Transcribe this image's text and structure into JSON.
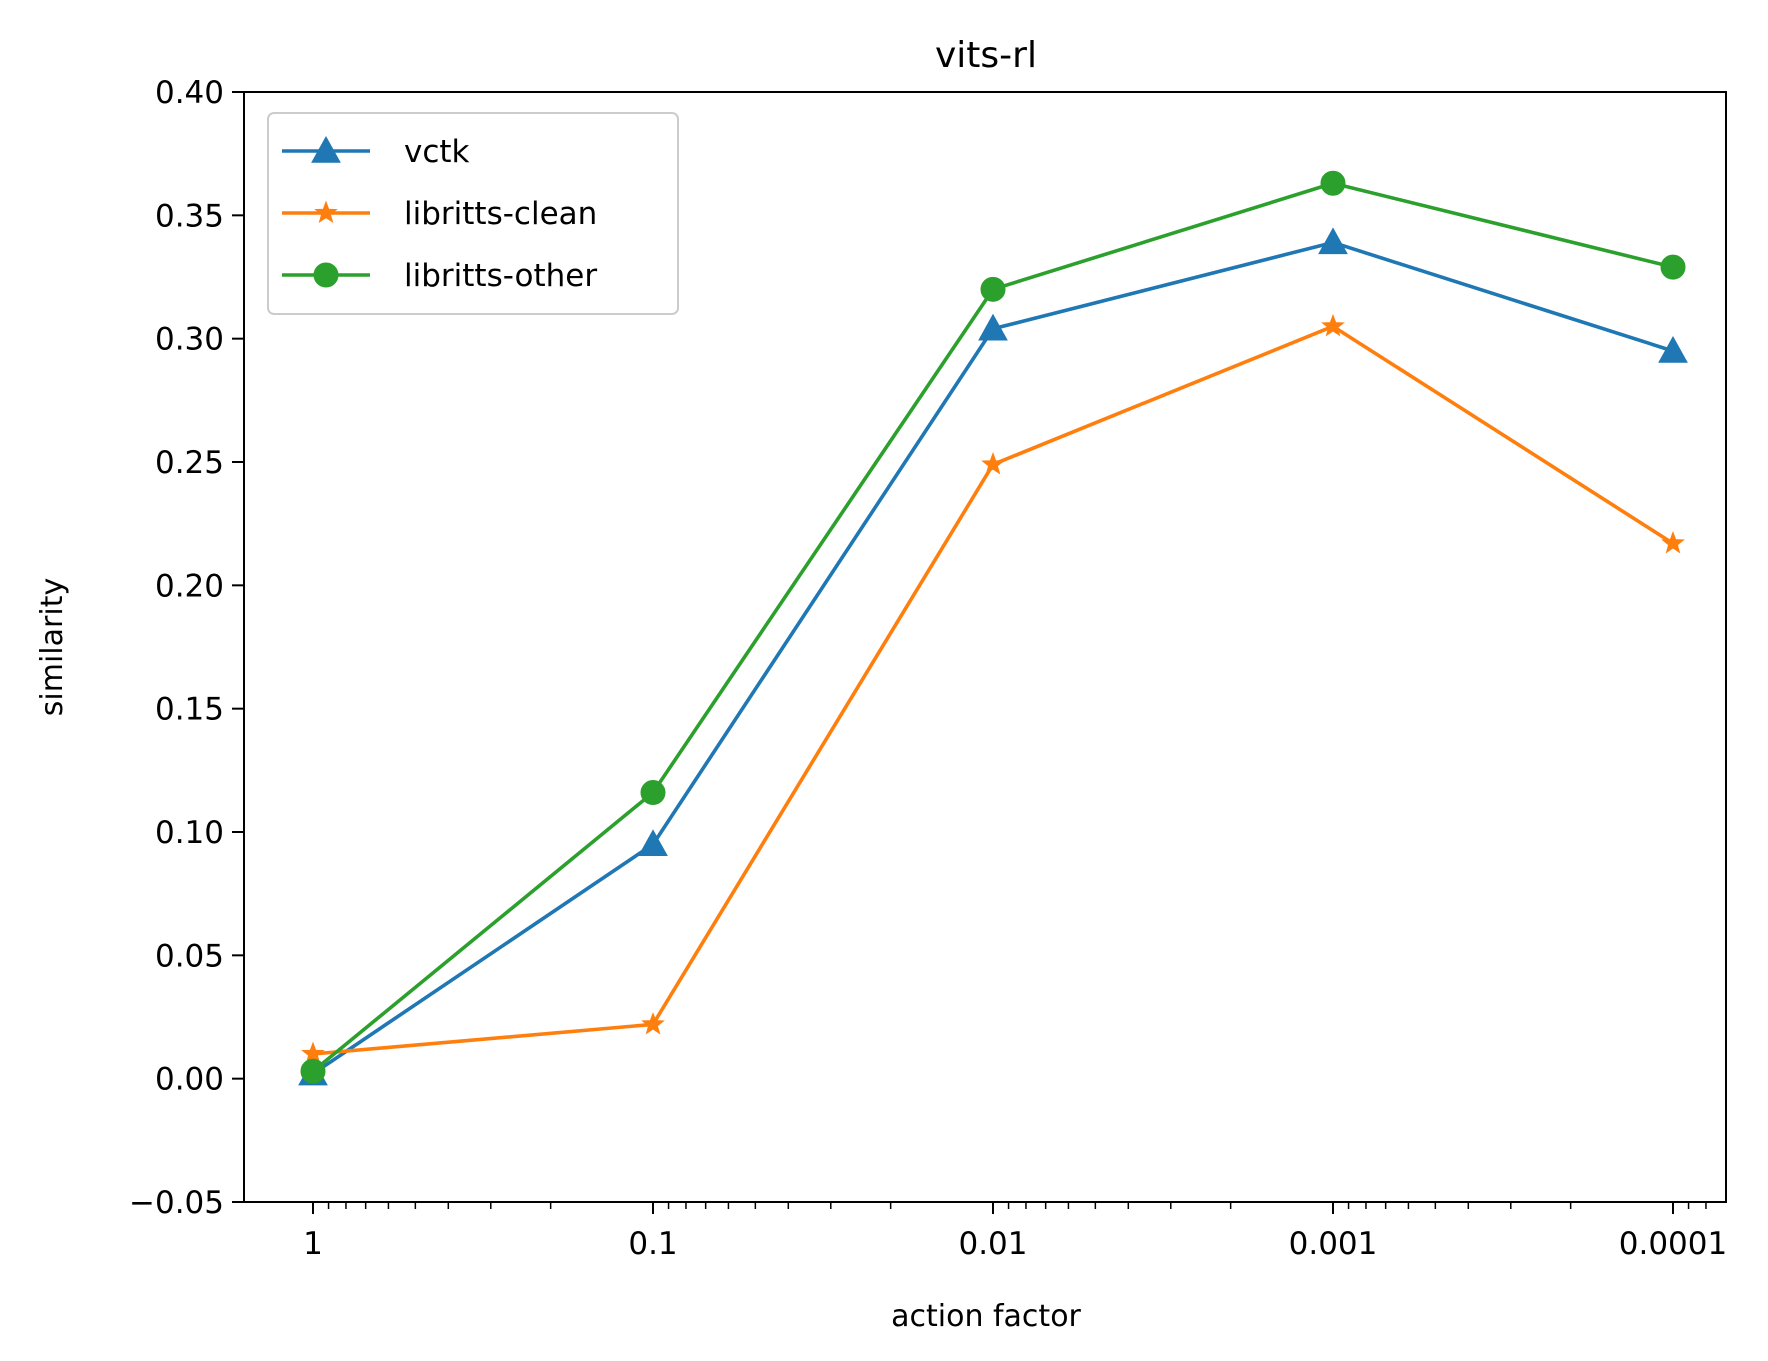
{
  "chart_data": {
    "type": "line",
    "title": "vits-rl",
    "xlabel": "action factor",
    "ylabel": "similarity",
    "x_scale": "log-reversed",
    "x": [
      1,
      0.1,
      0.01,
      0.001,
      0.0001
    ],
    "x_tick_labels": [
      "1",
      "0.1",
      "0.01",
      "0.001",
      "0.0001"
    ],
    "ylim": [
      -0.05,
      0.4
    ],
    "y_ticks": [
      -0.05,
      0.0,
      0.05,
      0.1,
      0.15,
      0.2,
      0.25,
      0.3,
      0.35,
      0.4
    ],
    "y_tick_labels": [
      "−0.05",
      "0.00",
      "0.05",
      "0.10",
      "0.15",
      "0.20",
      "0.25",
      "0.30",
      "0.35",
      "0.40"
    ],
    "grid": false,
    "legend_position": "top-left",
    "series": [
      {
        "name": "vctk",
        "color": "#1f77b4",
        "marker": "triangle",
        "values": [
          0.002,
          0.095,
          0.304,
          0.339,
          0.295
        ]
      },
      {
        "name": "libritts-clean",
        "color": "#ff7f0e",
        "marker": "star",
        "values": [
          0.01,
          0.022,
          0.249,
          0.305,
          0.217
        ]
      },
      {
        "name": "libritts-other",
        "color": "#2ca02c",
        "marker": "circle",
        "values": [
          0.003,
          0.116,
          0.32,
          0.363,
          0.329
        ]
      }
    ]
  }
}
